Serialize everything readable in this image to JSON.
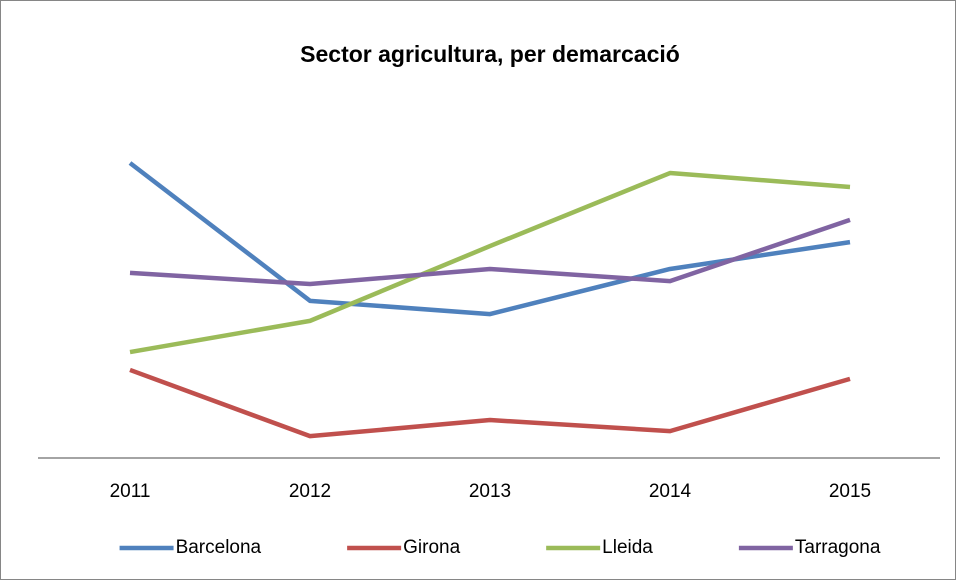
{
  "chart_data": {
    "type": "line",
    "title": "Sector agricultura, per demarcació",
    "categories": [
      "2011",
      "2012",
      "2013",
      "2014",
      "2015"
    ],
    "series": [
      {
        "name": "Barcelona",
        "color": "#4f81bd",
        "values": [
          82.4,
          43.9,
          40.2,
          52.8,
          60.3
        ]
      },
      {
        "name": "Girona",
        "color": "#c0504d",
        "values": [
          24.6,
          6.1,
          10.6,
          7.5,
          22.1
        ]
      },
      {
        "name": "Lleida",
        "color": "#9bbb59",
        "values": [
          29.6,
          38.3,
          59.2,
          79.6,
          75.7
        ]
      },
      {
        "name": "Tarragona",
        "color": "#8064a2",
        "values": [
          51.7,
          48.6,
          52.8,
          49.4,
          66.5
        ]
      }
    ],
    "ylim": [
      0,
      100
    ],
    "legend": "bottom"
  }
}
